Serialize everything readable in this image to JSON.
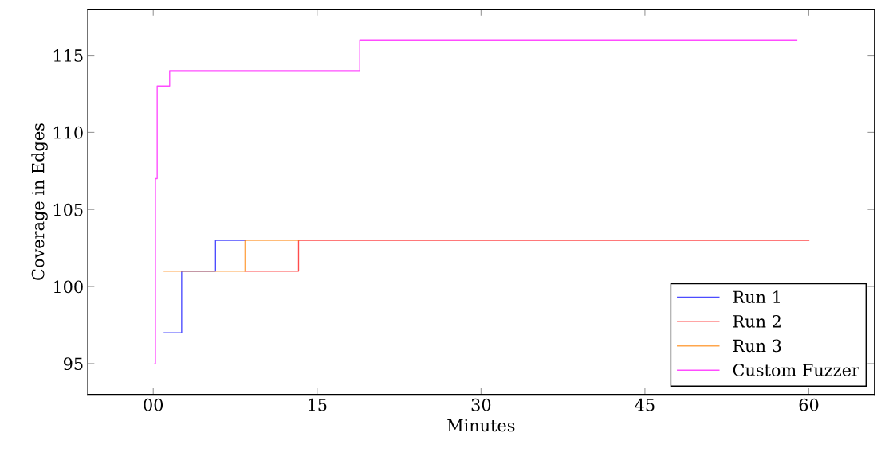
{
  "chart_data": {
    "type": "step",
    "xlabel": "Minutes",
    "ylabel": "Coverage in Edges",
    "xlim": [
      -6,
      66
    ],
    "ylim": [
      93,
      118
    ],
    "xticks": [
      {
        "value": 0,
        "label": "00"
      },
      15,
      30,
      45,
      60
    ],
    "yticks": [
      95,
      100,
      105,
      110,
      115
    ],
    "grid": false,
    "legend": "bottom right",
    "marker": "none",
    "line_style": "solid",
    "series": [
      {
        "name": "Run 1",
        "color": "#0000ff",
        "x": [
          1.0,
          2.6,
          5.7,
          8.4
        ],
        "values": [
          97,
          101,
          103,
          103
        ]
      },
      {
        "name": "Run 2",
        "color": "#ff0000",
        "x": [
          8.4,
          13.3,
          60
        ],
        "values": [
          101,
          103,
          103
        ]
      },
      {
        "name": "Run 3",
        "color": "#ff8000",
        "x": [
          1.0,
          8.4,
          13.3
        ],
        "values": [
          101,
          103,
          103
        ]
      },
      {
        "name": "Custom Fuzzer",
        "color": "#ff00ff",
        "x": [
          0.15,
          0.2,
          0.36,
          1.5,
          18.9,
          58.9
        ],
        "values": [
          95,
          107,
          113,
          114,
          116,
          116
        ]
      }
    ]
  }
}
